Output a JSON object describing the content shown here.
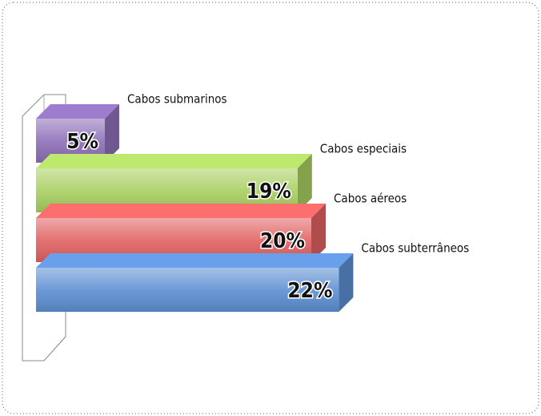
{
  "chart_data": {
    "type": "bar3d",
    "categories": [
      "Cabos submarinos",
      "Cabos especiais",
      "Cabos aéreos",
      "Cabos subterrâneos"
    ],
    "values": [
      5,
      19,
      20,
      22
    ],
    "value_labels": [
      "5%",
      "19%",
      "20%",
      "22%"
    ],
    "colors": [
      "#8e70b8",
      "#a9d062",
      "#e26262",
      "#5d8fd2"
    ]
  }
}
